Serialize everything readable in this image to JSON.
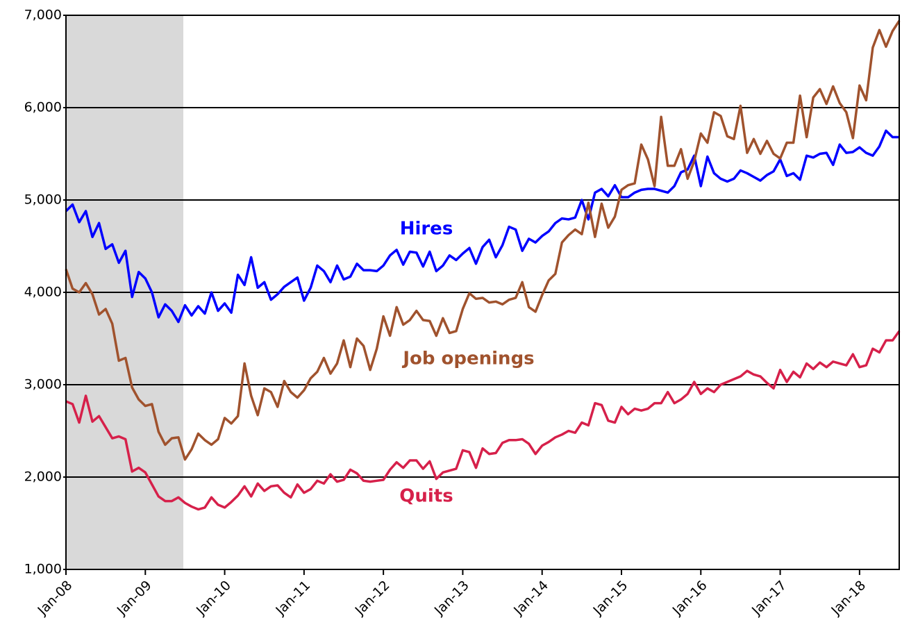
{
  "chart_data": {
    "type": "line",
    "categories": [
      "Jan-08",
      null,
      null,
      null,
      null,
      null,
      null,
      null,
      null,
      null,
      null,
      null,
      "Jan-09",
      null,
      null,
      null,
      null,
      null,
      null,
      null,
      null,
      null,
      null,
      null,
      "Jan-10",
      null,
      null,
      null,
      null,
      null,
      null,
      null,
      null,
      null,
      null,
      null,
      "Jan-11",
      null,
      null,
      null,
      null,
      null,
      null,
      null,
      null,
      null,
      null,
      null,
      "Jan-12",
      null,
      null,
      null,
      null,
      null,
      null,
      null,
      null,
      null,
      null,
      null,
      "Jan-13",
      null,
      null,
      null,
      null,
      null,
      null,
      null,
      null,
      null,
      null,
      null,
      "Jan-14",
      null,
      null,
      null,
      null,
      null,
      null,
      null,
      null,
      null,
      null,
      null,
      "Jan-15",
      null,
      null,
      null,
      null,
      null,
      null,
      null,
      null,
      null,
      null,
      null,
      "Jan-16",
      null,
      null,
      null,
      null,
      null,
      null,
      null,
      null,
      null,
      null,
      null,
      "Jan-17",
      null,
      null,
      null,
      null,
      null,
      null,
      null,
      null,
      null,
      null,
      null,
      "Jan-18",
      null,
      null,
      null,
      null,
      null,
      null
    ],
    "series": [
      {
        "name": "Hires",
        "color": "#0000ff",
        "values": [
          4880,
          4950,
          4760,
          4880,
          4600,
          4750,
          4470,
          4520,
          4320,
          4450,
          3950,
          4220,
          4150,
          4000,
          3730,
          3870,
          3800,
          3680,
          3860,
          3750,
          3850,
          3770,
          4000,
          3800,
          3880,
          3780,
          4190,
          4080,
          4380,
          4050,
          4110,
          3920,
          3980,
          4060,
          4110,
          4160,
          3910,
          4050,
          4290,
          4230,
          4110,
          4290,
          4140,
          4170,
          4310,
          4240,
          4240,
          4230,
          4290,
          4400,
          4460,
          4300,
          4440,
          4430,
          4280,
          4440,
          4230,
          4290,
          4400,
          4350,
          4420,
          4480,
          4310,
          4490,
          4570,
          4380,
          4510,
          4710,
          4680,
          4450,
          4580,
          4540,
          4610,
          4660,
          4750,
          4800,
          4790,
          4810,
          5000,
          4790,
          5080,
          5120,
          5040,
          5160,
          5030,
          5030,
          5080,
          5110,
          5120,
          5120,
          5100,
          5080,
          5150,
          5300,
          5330,
          5480,
          5150,
          5470,
          5290,
          5230,
          5200,
          5230,
          5320,
          5290,
          5250,
          5210,
          5270,
          5310,
          5440,
          5260,
          5290,
          5220,
          5480,
          5460,
          5500,
          5510,
          5380,
          5600,
          5510,
          5520,
          5570,
          5510,
          5480,
          5580,
          5750,
          5680,
          5680
        ]
      },
      {
        "name": "Job openings",
        "color": "#a0522d",
        "values": [
          4250,
          4040,
          4000,
          4100,
          3980,
          3760,
          3820,
          3660,
          3260,
          3290,
          2970,
          2840,
          2770,
          2790,
          2490,
          2350,
          2420,
          2430,
          2190,
          2300,
          2470,
          2400,
          2350,
          2410,
          2640,
          2580,
          2660,
          3230,
          2880,
          2670,
          2960,
          2920,
          2760,
          3040,
          2920,
          2860,
          2940,
          3070,
          3140,
          3290,
          3120,
          3230,
          3480,
          3190,
          3500,
          3420,
          3160,
          3390,
          3740,
          3530,
          3840,
          3650,
          3700,
          3800,
          3700,
          3690,
          3530,
          3720,
          3560,
          3580,
          3820,
          3990,
          3930,
          3940,
          3890,
          3900,
          3870,
          3920,
          3940,
          4110,
          3840,
          3790,
          3970,
          4130,
          4200,
          4540,
          4620,
          4680,
          4630,
          4970,
          4600,
          4960,
          4700,
          4820,
          5110,
          5160,
          5180,
          5600,
          5440,
          5150,
          5900,
          5370,
          5370,
          5550,
          5230,
          5420,
          5720,
          5620,
          5950,
          5910,
          5690,
          5660,
          6020,
          5510,
          5660,
          5500,
          5640,
          5500,
          5450,
          5620,
          5620,
          6130,
          5680,
          6110,
          6200,
          6040,
          6230,
          6050,
          5950,
          5670,
          6240,
          6080,
          6650,
          6840,
          6660,
          6830,
          6940
        ]
      },
      {
        "name": "Quits",
        "color": "#d6204a",
        "values": [
          2820,
          2790,
          2590,
          2880,
          2600,
          2660,
          2540,
          2420,
          2440,
          2410,
          2060,
          2100,
          2050,
          1920,
          1790,
          1740,
          1740,
          1780,
          1720,
          1680,
          1650,
          1670,
          1780,
          1700,
          1670,
          1730,
          1800,
          1900,
          1790,
          1930,
          1850,
          1900,
          1910,
          1830,
          1780,
          1920,
          1830,
          1870,
          1960,
          1930,
          2030,
          1950,
          1970,
          2080,
          2040,
          1960,
          1950,
          1960,
          1970,
          2080,
          2160,
          2100,
          2180,
          2180,
          2090,
          2170,
          1980,
          2050,
          2070,
          2090,
          2290,
          2270,
          2100,
          2310,
          2250,
          2260,
          2370,
          2400,
          2400,
          2410,
          2360,
          2250,
          2340,
          2380,
          2430,
          2460,
          2500,
          2480,
          2590,
          2560,
          2800,
          2780,
          2610,
          2590,
          2760,
          2680,
          2740,
          2720,
          2740,
          2800,
          2800,
          2920,
          2800,
          2840,
          2900,
          3030,
          2900,
          2960,
          2920,
          3000,
          3030,
          3060,
          3090,
          3150,
          3110,
          3090,
          3020,
          2960,
          3160,
          3030,
          3140,
          3080,
          3230,
          3170,
          3240,
          3190,
          3250,
          3230,
          3210,
          3330,
          3190,
          3210,
          3390,
          3350,
          3480,
          3480,
          3580
        ]
      }
    ],
    "ylim": [
      1000,
      7000
    ],
    "yticks": [
      {
        "value": 1000,
        "label": "1,000"
      },
      {
        "value": 2000,
        "label": "2,000"
      },
      {
        "value": 3000,
        "label": "3,000"
      },
      {
        "value": 4000,
        "label": "4,000"
      },
      {
        "value": 5000,
        "label": "5,000"
      },
      {
        "value": 6000,
        "label": "6,000"
      },
      {
        "value": 7000,
        "label": "7,000"
      }
    ],
    "grid": true
  }
}
